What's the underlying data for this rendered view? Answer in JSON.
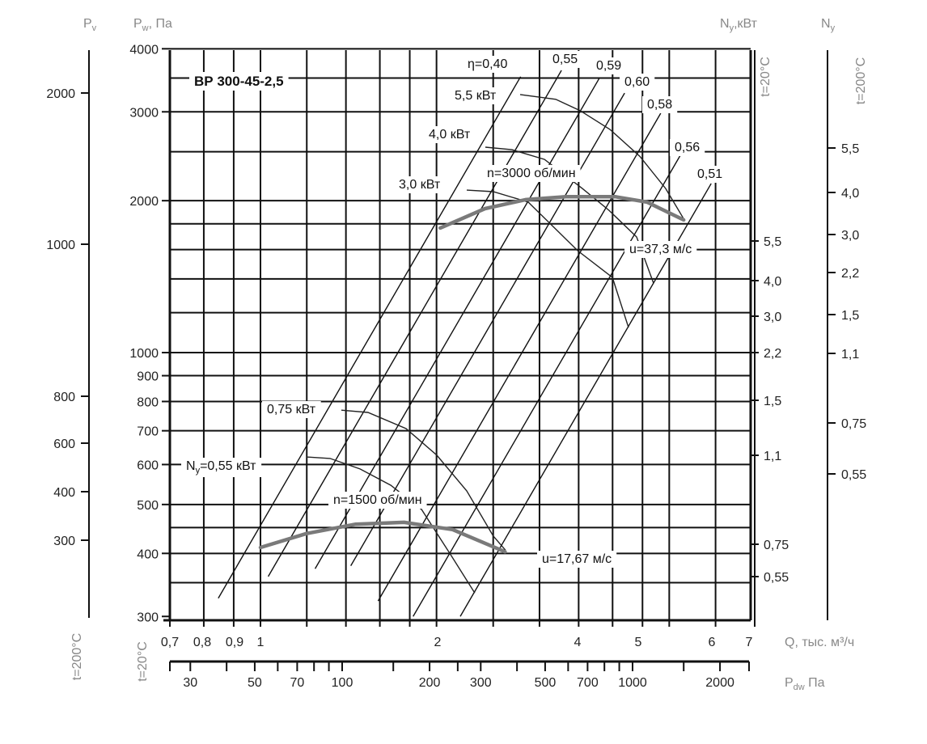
{
  "chart_data": {
    "type": "line",
    "title": "ВР 300-45-2,5",
    "grid": true,
    "x_axis": {
      "label": "Q, тыс. м³/ч",
      "scale": "log",
      "range": [
        0.7,
        7
      ],
      "tick_labels": [
        "0,7",
        "0,8",
        "0,9",
        "1",
        "2",
        "4",
        "5",
        "6",
        "7"
      ],
      "gridlines": [
        0.7,
        0.8,
        0.9,
        1,
        1.2,
        1.4,
        1.6,
        1.8,
        2,
        2.5,
        3,
        3.5,
        4,
        4.5,
        5,
        6,
        7
      ]
    },
    "y_axis": {
      "label_main": "P",
      "label_sub": "w",
      "label_suffix": ", Па",
      "scale": "log",
      "range": [
        300,
        4000
      ],
      "tick_labels": [
        4000,
        3000,
        2000,
        1000,
        900,
        800,
        700,
        600,
        500,
        400,
        300
      ],
      "gridlines": [
        350,
        400,
        450,
        500,
        600,
        700,
        800,
        900,
        1000,
        1200,
        1400,
        1600,
        1800,
        2000,
        2500,
        3000,
        3500,
        4000
      ]
    },
    "y_axis_outer": {
      "label_main": "P",
      "label_sub": "v",
      "temperature": "t=200°C",
      "tick_labels": [
        "2000",
        "1000",
        "800",
        "600",
        "400",
        "300"
      ]
    },
    "x_axis_temperature": "t=20°C",
    "pdw_axis": {
      "label_main": "P",
      "label_sub": "dw",
      "label_suffix": " Па",
      "scale": "log",
      "tick_labels": [
        30,
        50,
        70,
        100,
        200,
        300,
        500,
        700,
        1000,
        2000
      ],
      "minor_ticks": [
        30,
        40,
        50,
        60,
        70,
        80,
        90,
        100,
        150,
        200,
        250,
        300,
        400,
        500,
        600,
        700,
        800,
        900,
        1000,
        1500,
        2000
      ]
    },
    "ny_axis_inner": {
      "label_main": "N",
      "label_sub": "y",
      "label_suffix": ",кВт",
      "temperature": "t=20°C",
      "tick_labels": [
        "5,5",
        "4,0",
        "3,0",
        "2,2",
        "1,5",
        "1,1",
        "0,75",
        "0,55"
      ]
    },
    "ny_axis_outer": {
      "label_main": "N",
      "label_sub": "y",
      "temperature": "t=200°C",
      "tick_labels": [
        "5,5",
        "4,0",
        "3,0",
        "2,2",
        "1,5",
        "1,1",
        "0,75",
        "0,55"
      ]
    },
    "speed_curves": [
      {
        "label": "n=3000 об/мин",
        "tip_speed": "u=37,3 м/с",
        "points": [
          [
            2.03,
            1766
          ],
          [
            2.42,
            1929
          ],
          [
            2.84,
            2009
          ],
          [
            3.33,
            2037
          ],
          [
            4.04,
            2037
          ],
          [
            4.58,
            1987
          ],
          [
            5.29,
            1832
          ]
        ]
      },
      {
        "label": "n=1500 об/мин",
        "tip_speed": "u=17,67 м/с",
        "points": [
          [
            1.0,
            411
          ],
          [
            1.2,
            438
          ],
          [
            1.455,
            457
          ],
          [
            1.76,
            461
          ],
          [
            2.13,
            446
          ],
          [
            2.62,
            403
          ]
        ]
      }
    ],
    "efficiency_lines": [
      {
        "label": "η=0,40",
        "points": [
          [
            0.847,
            326
          ],
          [
            2.785,
            3522
          ]
        ]
      },
      {
        "label": "0,55",
        "points": [
          [
            1.031,
            360
          ],
          [
            3.271,
            3625
          ]
        ]
      },
      {
        "label": "0,59",
        "points": [
          [
            1.24,
            373
          ],
          [
            3.796,
            3496
          ]
        ]
      },
      {
        "label": "0,60",
        "points": [
          [
            1.427,
            378
          ],
          [
            4.194,
            3268
          ]
        ]
      },
      {
        "label": "0,58",
        "points": [
          [
            1.589,
            322
          ],
          [
            4.835,
            2981
          ]
        ]
      },
      {
        "label": "0,56",
        "points": [
          [
            1.824,
            300
          ],
          [
            5.245,
            2481
          ]
        ]
      },
      {
        "label": "0,51",
        "points": [
          [
            2.196,
            300
          ],
          [
            5.898,
            2163
          ]
        ]
      }
    ],
    "power_curves": [
      {
        "label": "5,5 кВт",
        "points": [
          [
            2.78,
            3246
          ],
          [
            3.198,
            3176
          ],
          [
            3.518,
            3017
          ],
          [
            3.958,
            2769
          ],
          [
            4.454,
            2449
          ],
          [
            4.93,
            2114
          ],
          [
            5.32,
            1823
          ]
        ]
      },
      {
        "label": "4,0 кВт",
        "points": [
          [
            2.424,
            2553
          ],
          [
            2.692,
            2524
          ],
          [
            3.059,
            2415
          ],
          [
            3.551,
            2114
          ],
          [
            3.944,
            1914
          ],
          [
            4.397,
            1695
          ],
          [
            4.7,
            1373
          ]
        ]
      },
      {
        "label": "3,0 кВт",
        "points": [
          [
            2.253,
            2099
          ],
          [
            2.501,
            2084
          ],
          [
            2.87,
            1987
          ],
          [
            3.487,
            1592
          ],
          [
            3.997,
            1409
          ],
          [
            4.259,
            1121
          ]
        ]
      },
      {
        "label": "0,75 кВт",
        "points": [
          [
            1.375,
            769
          ],
          [
            1.527,
            761
          ],
          [
            1.774,
            707
          ],
          [
            2.002,
            626
          ],
          [
            2.253,
            532
          ],
          [
            2.501,
            433
          ],
          [
            2.624,
            406
          ]
        ]
      },
      {
        "label_main": "N",
        "label_sub": "y",
        "label": "=0,55 кВт",
        "points": [
          [
            1.199,
            621
          ],
          [
            1.315,
            617
          ],
          [
            1.48,
            588
          ],
          [
            1.67,
            546
          ],
          [
            1.885,
            489
          ],
          [
            2.119,
            396
          ],
          [
            2.325,
            334
          ]
        ]
      }
    ],
    "colors": {
      "grid": "#111111",
      "speed_curve": "#7a7a7a",
      "axis_header": "#888888"
    }
  }
}
